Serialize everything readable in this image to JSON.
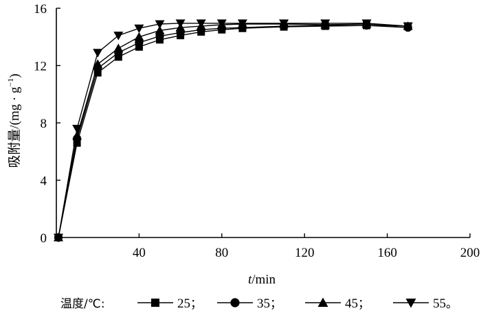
{
  "chart_data": {
    "type": "line",
    "xlabel_italic": "t",
    "xlabel_unit": "/min",
    "ylabel": "吸附量/(mg · g",
    "ylabel_sup": "−1",
    "ylabel_close": ")",
    "xlim": [
      0,
      200
    ],
    "ylim": [
      0,
      16
    ],
    "xticks": [
      "40",
      "80",
      "120",
      "160",
      "200"
    ],
    "yticks": [
      "0",
      "4",
      "8",
      "12",
      "16"
    ],
    "grid": false,
    "legend_placement": "bottom",
    "legend_title": "温度/℃:",
    "legend_end": "。",
    "series": [
      {
        "name": "25",
        "marker": "square",
        "separator": "；",
        "x": [
          1,
          10,
          20,
          30,
          40,
          50,
          60,
          70,
          80,
          90,
          110,
          130,
          150,
          170
        ],
        "y": [
          0,
          6.6,
          11.5,
          12.6,
          13.3,
          13.8,
          14.1,
          14.35,
          14.5,
          14.6,
          14.7,
          14.75,
          14.8,
          14.75
        ]
      },
      {
        "name": "35",
        "marker": "circle",
        "separator": "；",
        "x": [
          1,
          10,
          20,
          30,
          40,
          50,
          60,
          70,
          80,
          90,
          110,
          130,
          150,
          170
        ],
        "y": [
          0,
          6.9,
          11.8,
          12.9,
          13.6,
          14.05,
          14.3,
          14.5,
          14.6,
          14.65,
          14.75,
          14.8,
          14.8,
          14.65
        ]
      },
      {
        "name": "45",
        "marker": "triangle-up",
        "separator": "；",
        "x": [
          1,
          10,
          20,
          30,
          40,
          50,
          60,
          70,
          80,
          90,
          110,
          130,
          150,
          170
        ],
        "y": [
          0,
          7.1,
          12.1,
          13.2,
          14.0,
          14.45,
          14.65,
          14.75,
          14.85,
          14.9,
          14.9,
          14.85,
          14.9,
          14.75
        ]
      },
      {
        "name": "55",
        "marker": "triangle-down",
        "separator": "",
        "x": [
          1,
          10,
          20,
          30,
          40,
          50,
          60,
          70,
          80,
          90,
          110,
          130,
          150,
          170
        ],
        "y": [
          0,
          7.6,
          12.9,
          14.1,
          14.6,
          14.9,
          14.95,
          14.95,
          14.95,
          14.95,
          14.95,
          14.95,
          14.95,
          14.75
        ]
      }
    ]
  }
}
